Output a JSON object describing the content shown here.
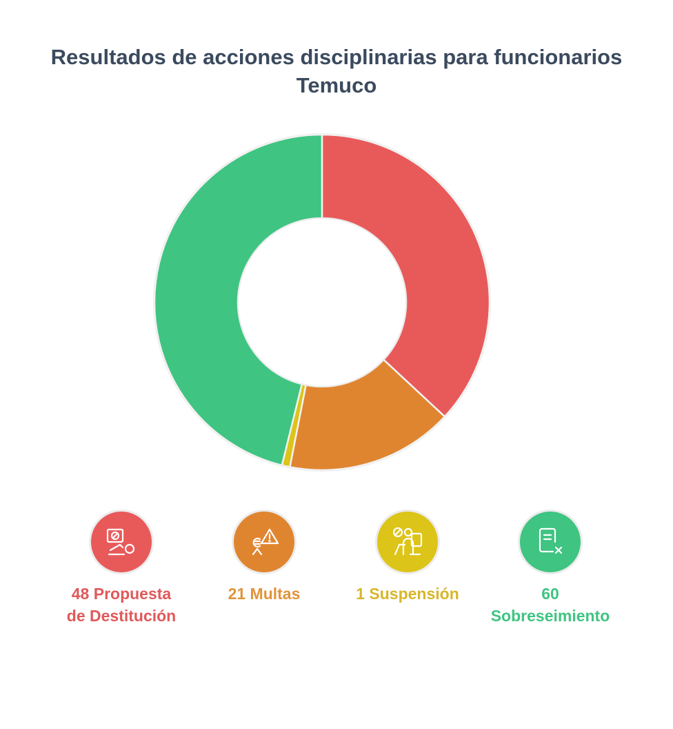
{
  "chart_data": {
    "type": "pie",
    "title": "Resultados de acciones disciplinarias para funcionarios",
    "subtitle": "Temuco",
    "categories": [
      "Propuesta de Destitución",
      "Multas",
      "Suspensión",
      "Sobreseimiento"
    ],
    "values": [
      48,
      21,
      1,
      60
    ],
    "colors": [
      "#e85a5a",
      "#e0852f",
      "#ddc418",
      "#3fc482"
    ],
    "donut": true
  },
  "legend": [
    {
      "line1": "48 Propuesta",
      "line2": "de Destitución",
      "color": "#e85a5a",
      "label_color": "#e0595a",
      "icon": "dismissal-icon"
    },
    {
      "line1": "21 Multas",
      "line2": "",
      "color": "#e0852f",
      "label_color": "#e0943b",
      "icon": "fine-warning-icon"
    },
    {
      "line1": "1 Suspensión",
      "line2": "",
      "color": "#ddc418",
      "label_color": "#d8b62a",
      "icon": "suspension-icon"
    },
    {
      "line1": "60",
      "line2": "Sobreseimiento",
      "color": "#3fc482",
      "label_color": "#3fc482",
      "icon": "document-dismissed-icon"
    }
  ]
}
